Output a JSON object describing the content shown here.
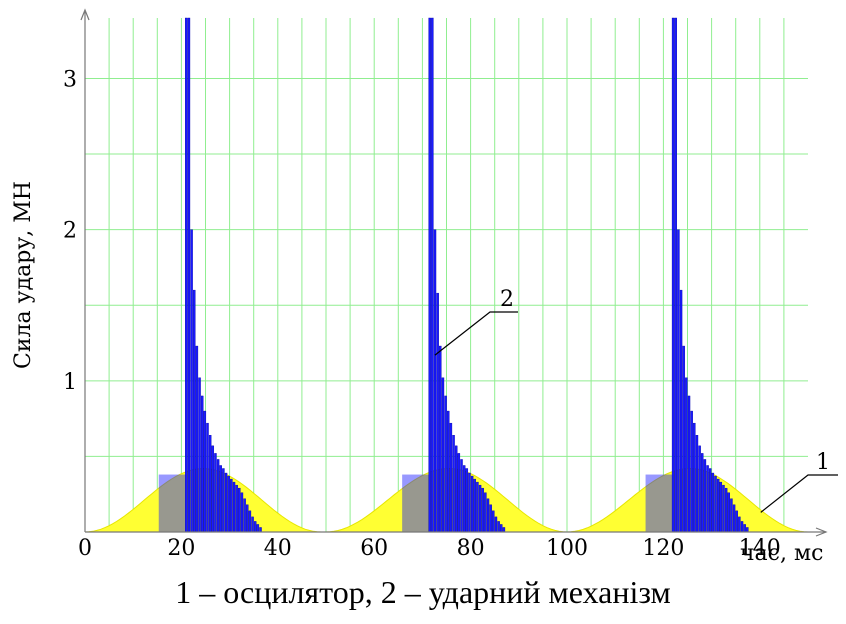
{
  "chart_data": {
    "type": "bar",
    "ylabel": "Сила удару, МН",
    "xlabel": "час, мс",
    "xlim": [
      0,
      150
    ],
    "ylim": [
      0,
      3.4
    ],
    "x_ticks": [
      0,
      20,
      40,
      60,
      80,
      100,
      120,
      140
    ],
    "y_ticks": [
      1,
      2,
      3
    ],
    "grid": true,
    "grid_color": "#90ee90",
    "annotations": [
      {
        "label": "1",
        "target": "oscillator curve"
      },
      {
        "label": "2",
        "target": "impact mechanism bars"
      }
    ],
    "series": [
      {
        "label": "1",
        "type": "area",
        "color": "#ffff33",
        "peak_value": 0.42,
        "pulses": [
          {
            "start": 0,
            "peak": 24.5,
            "end": 49
          },
          {
            "start": 50,
            "peak": 75.5,
            "end": 100
          },
          {
            "start": 100,
            "peak": 125.5,
            "end": 150
          }
        ]
      },
      {
        "label": "2",
        "type": "bar",
        "color": "#1a1aff",
        "pulses": [
          {
            "start": 20.8,
            "values": [
              3.4,
              3.4,
              2.0,
              1.6,
              1.23,
              1.02,
              0.9,
              0.8,
              0.72,
              0.64,
              0.57,
              0.52,
              0.48,
              0.44,
              0.42,
              0.39,
              0.37,
              0.35,
              0.33,
              0.31,
              0.29,
              0.26,
              0.22,
              0.18,
              0.14,
              0.1,
              0.07,
              0.05,
              0.03
            ]
          },
          {
            "start": 71.3,
            "values": [
              3.4,
              3.4,
              2.0,
              1.58,
              1.23,
              1.02,
              0.9,
              0.8,
              0.72,
              0.64,
              0.57,
              0.52,
              0.48,
              0.44,
              0.42,
              0.39,
              0.37,
              0.35,
              0.33,
              0.31,
              0.29,
              0.26,
              0.22,
              0.18,
              0.14,
              0.1,
              0.07,
              0.05,
              0.03
            ]
          },
          {
            "start": 121.8,
            "values": [
              3.4,
              3.4,
              2.0,
              1.6,
              1.23,
              1.02,
              0.9,
              0.8,
              0.72,
              0.64,
              0.57,
              0.52,
              0.48,
              0.44,
              0.42,
              0.39,
              0.37,
              0.35,
              0.33,
              0.31,
              0.29,
              0.26,
              0.22,
              0.18,
              0.14,
              0.1,
              0.07,
              0.05,
              0.03
            ]
          }
        ],
        "bar_width": 0.55,
        "plateau_value": 0.38,
        "plateau_start_offset": -5.5
      }
    ]
  },
  "caption": "1 – осцилятор, 2 – ударний механізм"
}
